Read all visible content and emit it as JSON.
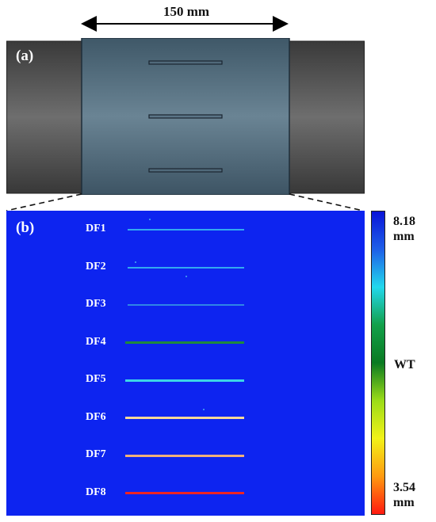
{
  "dimension": {
    "label": "150 mm"
  },
  "panel_a": {
    "label": "(a)"
  },
  "panel_b": {
    "label": "(b)"
  },
  "colors": {
    "pipe_dark": "#4a4a4a",
    "section_fill": "#4f6878",
    "map_background": "#0d24f0"
  },
  "defects": [
    {
      "label": "DF1",
      "color": "#33aaf0"
    },
    {
      "label": "DF2",
      "color": "#33aaf0"
    },
    {
      "label": "DF3",
      "color": "#2f86e6"
    },
    {
      "label": "DF4",
      "color": "#1f8a3c"
    },
    {
      "label": "DF5",
      "color": "#3cd6e8"
    },
    {
      "label": "DF6",
      "color": "#f5d89a"
    },
    {
      "label": "DF7",
      "color": "#f0b07a"
    },
    {
      "label": "DF8",
      "color": "#ee2424"
    }
  ],
  "colorbar": {
    "max_value": "8.18",
    "max_unit": "mm",
    "mid_label": "WT",
    "min_value": "3.54",
    "min_unit": "mm",
    "stops": [
      "#0a14d8",
      "#1e5fe8",
      "#22d8ec",
      "#12a04a",
      "#0a7a22",
      "#9bdc18",
      "#f2f218",
      "#ff9a10",
      "#ff1a10"
    ]
  }
}
